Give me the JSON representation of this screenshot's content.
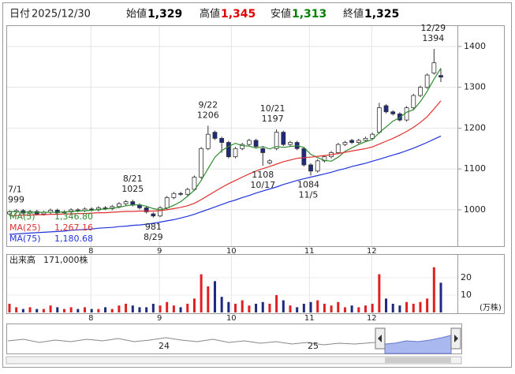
{
  "chart_data": {
    "type": "candlestick",
    "header": {
      "date_label": "日付",
      "date": "2025/12/30",
      "quotes": [
        {
          "label": "始値",
          "value": "1,329",
          "color": "#000000"
        },
        {
          "label": "高値",
          "value": "1,345",
          "color": "#e00000"
        },
        {
          "label": "安値",
          "value": "1,313",
          "color": "#008000"
        },
        {
          "label": "終値",
          "value": "1,325",
          "color": "#000000"
        }
      ]
    },
    "open": [
      990,
      995,
      998,
      992,
      996,
      990,
      994,
      999,
      993,
      995,
      1000,
      998,
      1002,
      1000,
      1005,
      1003,
      1008,
      1015,
      1020,
      1012,
      1005,
      990,
      985,
      1005,
      1030,
      1040,
      1038,
      1050,
      1080,
      1150,
      1190,
      1175,
      1165,
      1130,
      1150,
      1160,
      1170,
      1150,
      1115,
      1150,
      1190,
      1160,
      1165,
      1150,
      1110,
      1095,
      1120,
      1130,
      1140,
      1160,
      1170,
      1165,
      1170,
      1175,
      1190,
      1255,
      1240,
      1235,
      1220,
      1250,
      1280,
      1300,
      1335,
      1329
    ],
    "high": [
      999,
      1002,
      1002,
      1000,
      1000,
      998,
      1003,
      1003,
      999,
      1004,
      1004,
      1006,
      1006,
      1009,
      1009,
      1012,
      1019,
      1024,
      1025,
      1016,
      1009,
      994,
      1009,
      1034,
      1044,
      1044,
      1054,
      1084,
      1154,
      1206,
      1194,
      1179,
      1169,
      1154,
      1164,
      1174,
      1174,
      1154,
      1124,
      1197,
      1194,
      1169,
      1169,
      1154,
      1114,
      1124,
      1134,
      1144,
      1164,
      1169,
      1174,
      1174,
      1179,
      1189,
      1262,
      1259,
      1244,
      1239,
      1254,
      1284,
      1304,
      1334,
      1394,
      1345
    ],
    "low": [
      986,
      991,
      988,
      988,
      986,
      986,
      990,
      989,
      989,
      991,
      994,
      994,
      996,
      996,
      999,
      999,
      1004,
      1011,
      1008,
      1001,
      991,
      981,
      982,
      1001,
      1026,
      1034,
      1034,
      1046,
      1076,
      1146,
      1171,
      1140,
      1126,
      1126,
      1146,
      1156,
      1151,
      1108,
      1111,
      1146,
      1156,
      1156,
      1146,
      1106,
      1084,
      1091,
      1116,
      1126,
      1136,
      1156,
      1161,
      1161,
      1166,
      1171,
      1186,
      1236,
      1231,
      1216,
      1216,
      1246,
      1276,
      1296,
      1331,
      1313
    ],
    "close": [
      995,
      998,
      992,
      996,
      990,
      994,
      999,
      993,
      995,
      1000,
      998,
      1002,
      1000,
      1005,
      1003,
      1008,
      1015,
      1020,
      1012,
      1005,
      995,
      985,
      1005,
      1030,
      1040,
      1038,
      1050,
      1080,
      1150,
      1185,
      1175,
      1165,
      1130,
      1150,
      1160,
      1170,
      1155,
      1140,
      1120,
      1190,
      1160,
      1165,
      1150,
      1110,
      1095,
      1120,
      1130,
      1140,
      1160,
      1165,
      1165,
      1170,
      1175,
      1185,
      1250,
      1240,
      1235,
      1220,
      1250,
      1280,
      1300,
      1330,
      1360,
      1325
    ],
    "up_color": "#ffffff",
    "down_color": "#1c2a80",
    "ylim": [
      911,
      1452
    ],
    "yticks": [
      1000,
      1100,
      1200,
      1300,
      1400
    ],
    "xticks": [
      {
        "value": 11.9,
        "label": "8"
      },
      {
        "value": 21.9,
        "label": "9"
      },
      {
        "value": 32.4,
        "label": "10"
      },
      {
        "value": 43.8,
        "label": "11"
      },
      {
        "value": 52.9,
        "label": "12"
      }
    ],
    "grid": true,
    "moving_averages": [
      {
        "name": "MA(5)",
        "value_label": "1,346.80",
        "color": "#2e8b2e",
        "values": [
          996,
          995,
          994,
          995,
          994,
          994,
          994,
          994,
          995,
          996,
          997,
          998,
          999,
          1001,
          1002,
          1004,
          1006,
          1010,
          1012,
          1012,
          1009,
          1003,
          1000,
          1004,
          1011,
          1020,
          1033,
          1048,
          1072,
          1101,
          1129,
          1145,
          1155,
          1163,
          1157,
          1156,
          1151,
          1155,
          1149,
          1155,
          1153,
          1155,
          1157,
          1153,
          1136,
          1128,
          1121,
          1119,
          1129,
          1143,
          1152,
          1160,
          1167,
          1172,
          1189,
          1203,
          1217,
          1226,
          1239,
          1245,
          1265,
          1290,
          1320,
          1346.8
        ]
      },
      {
        "name": "MA(25)",
        "value_label": "1,267.16",
        "color": "#e03030",
        "values": [
          985,
          986,
          987,
          987,
          988,
          988,
          989,
          989,
          990,
          990,
          991,
          991,
          992,
          993,
          993,
          994,
          995,
          996,
          996,
          997,
          997,
          997,
          998,
          1000,
          1003,
          1006,
          1010,
          1016,
          1025,
          1035,
          1045,
          1055,
          1064,
          1072,
          1080,
          1088,
          1095,
          1101,
          1106,
          1112,
          1118,
          1122,
          1126,
          1128,
          1129,
          1131,
          1133,
          1135,
          1138,
          1141,
          1144,
          1147,
          1150,
          1154,
          1161,
          1168,
          1175,
          1183,
          1192,
          1202,
          1214,
          1228,
          1247,
          1267.16
        ]
      },
      {
        "name": "MA(75)",
        "value_label": "1,180.68",
        "color": "#2233dd",
        "values": [
          940,
          941,
          942,
          943,
          944,
          945,
          946,
          947,
          948,
          950,
          951,
          952,
          953,
          955,
          956,
          957,
          959,
          960,
          962,
          963,
          965,
          967,
          970,
          973,
          976,
          980,
          984,
          989,
          995,
          1001,
          1007,
          1013,
          1019,
          1024,
          1030,
          1035,
          1041,
          1046,
          1051,
          1056,
          1062,
          1067,
          1072,
          1076,
          1080,
          1084,
          1088,
          1092,
          1097,
          1101,
          1106,
          1110,
          1114,
          1119,
          1124,
          1129,
          1134,
          1139,
          1145,
          1151,
          1158,
          1165,
          1173,
          1180.68
        ]
      }
    ],
    "annotations": [
      {
        "label": "7/1",
        "value": 999
      },
      {
        "label": "8/21",
        "value": 1025
      },
      {
        "label": "8/29",
        "value": 981
      },
      {
        "label": "9/22",
        "value": 1206
      },
      {
        "label": "10/21",
        "value": 1197
      },
      {
        "label": "10/17",
        "value": 1108
      },
      {
        "label": "11/5",
        "value": 1084
      },
      {
        "label": "12/29",
        "value": 1394
      }
    ],
    "volume": {
      "title": "出来高",
      "value_label": "171,000株",
      "unit": "(万株)",
      "ylim": [
        0,
        33.6
      ],
      "yticks": [
        10,
        20
      ],
      "up_color": "#e02020",
      "down_color": "#1c2a80",
      "values": [
        5,
        3,
        2,
        3,
        2,
        2,
        4,
        3,
        2,
        3,
        2,
        3,
        2,
        2,
        3,
        2,
        4,
        5,
        4,
        3,
        3,
        5,
        4,
        6,
        4,
        3,
        5,
        8,
        22,
        15,
        18,
        9,
        6,
        5,
        7,
        4,
        5,
        6,
        5,
        10,
        7,
        4,
        3,
        5,
        6,
        7,
        5,
        4,
        6,
        3,
        4,
        3,
        4,
        5,
        22,
        8,
        5,
        4,
        6,
        5,
        6,
        8,
        26,
        17.1
      ]
    },
    "navigator": {
      "labels": [
        "24",
        "25"
      ]
    }
  }
}
